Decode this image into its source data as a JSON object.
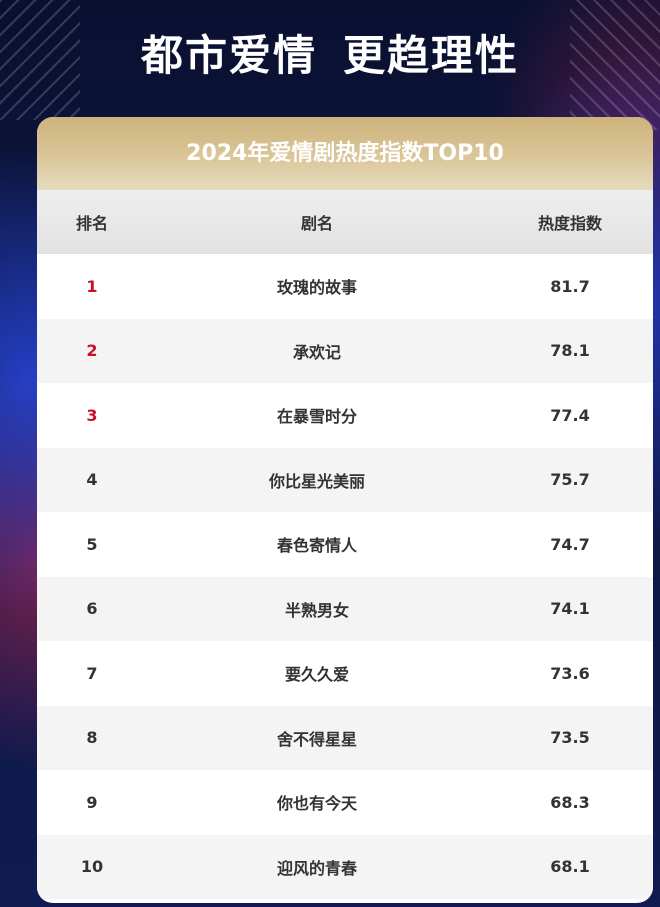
{
  "headline": {
    "part1": "都市爱情",
    "part2": "更趋理性"
  },
  "table": {
    "title": "2024年爱情剧热度指数TOP10",
    "headers": {
      "rank": "排名",
      "name": "剧名",
      "score": "热度指数"
    },
    "rows": [
      {
        "rank": "1",
        "name": "玫瑰的故事",
        "score": "81.7"
      },
      {
        "rank": "2",
        "name": "承欢记",
        "score": "78.1"
      },
      {
        "rank": "3",
        "name": "在暴雪时分",
        "score": "77.4"
      },
      {
        "rank": "4",
        "name": "你比星光美丽",
        "score": "75.7"
      },
      {
        "rank": "5",
        "name": "春色寄情人",
        "score": "74.7"
      },
      {
        "rank": "6",
        "name": "半熟男女",
        "score": "74.1"
      },
      {
        "rank": "7",
        "name": "要久久爱",
        "score": "73.6"
      },
      {
        "rank": "8",
        "name": "舍不得星星",
        "score": "73.5"
      },
      {
        "rank": "9",
        "name": "你也有今天",
        "score": "68.3"
      },
      {
        "rank": "10",
        "name": "迎风的青春",
        "score": "68.1"
      }
    ]
  },
  "colors": {
    "top_rank": "#c8102e",
    "title_gold": "#d9c495",
    "background": "#0b1236"
  }
}
